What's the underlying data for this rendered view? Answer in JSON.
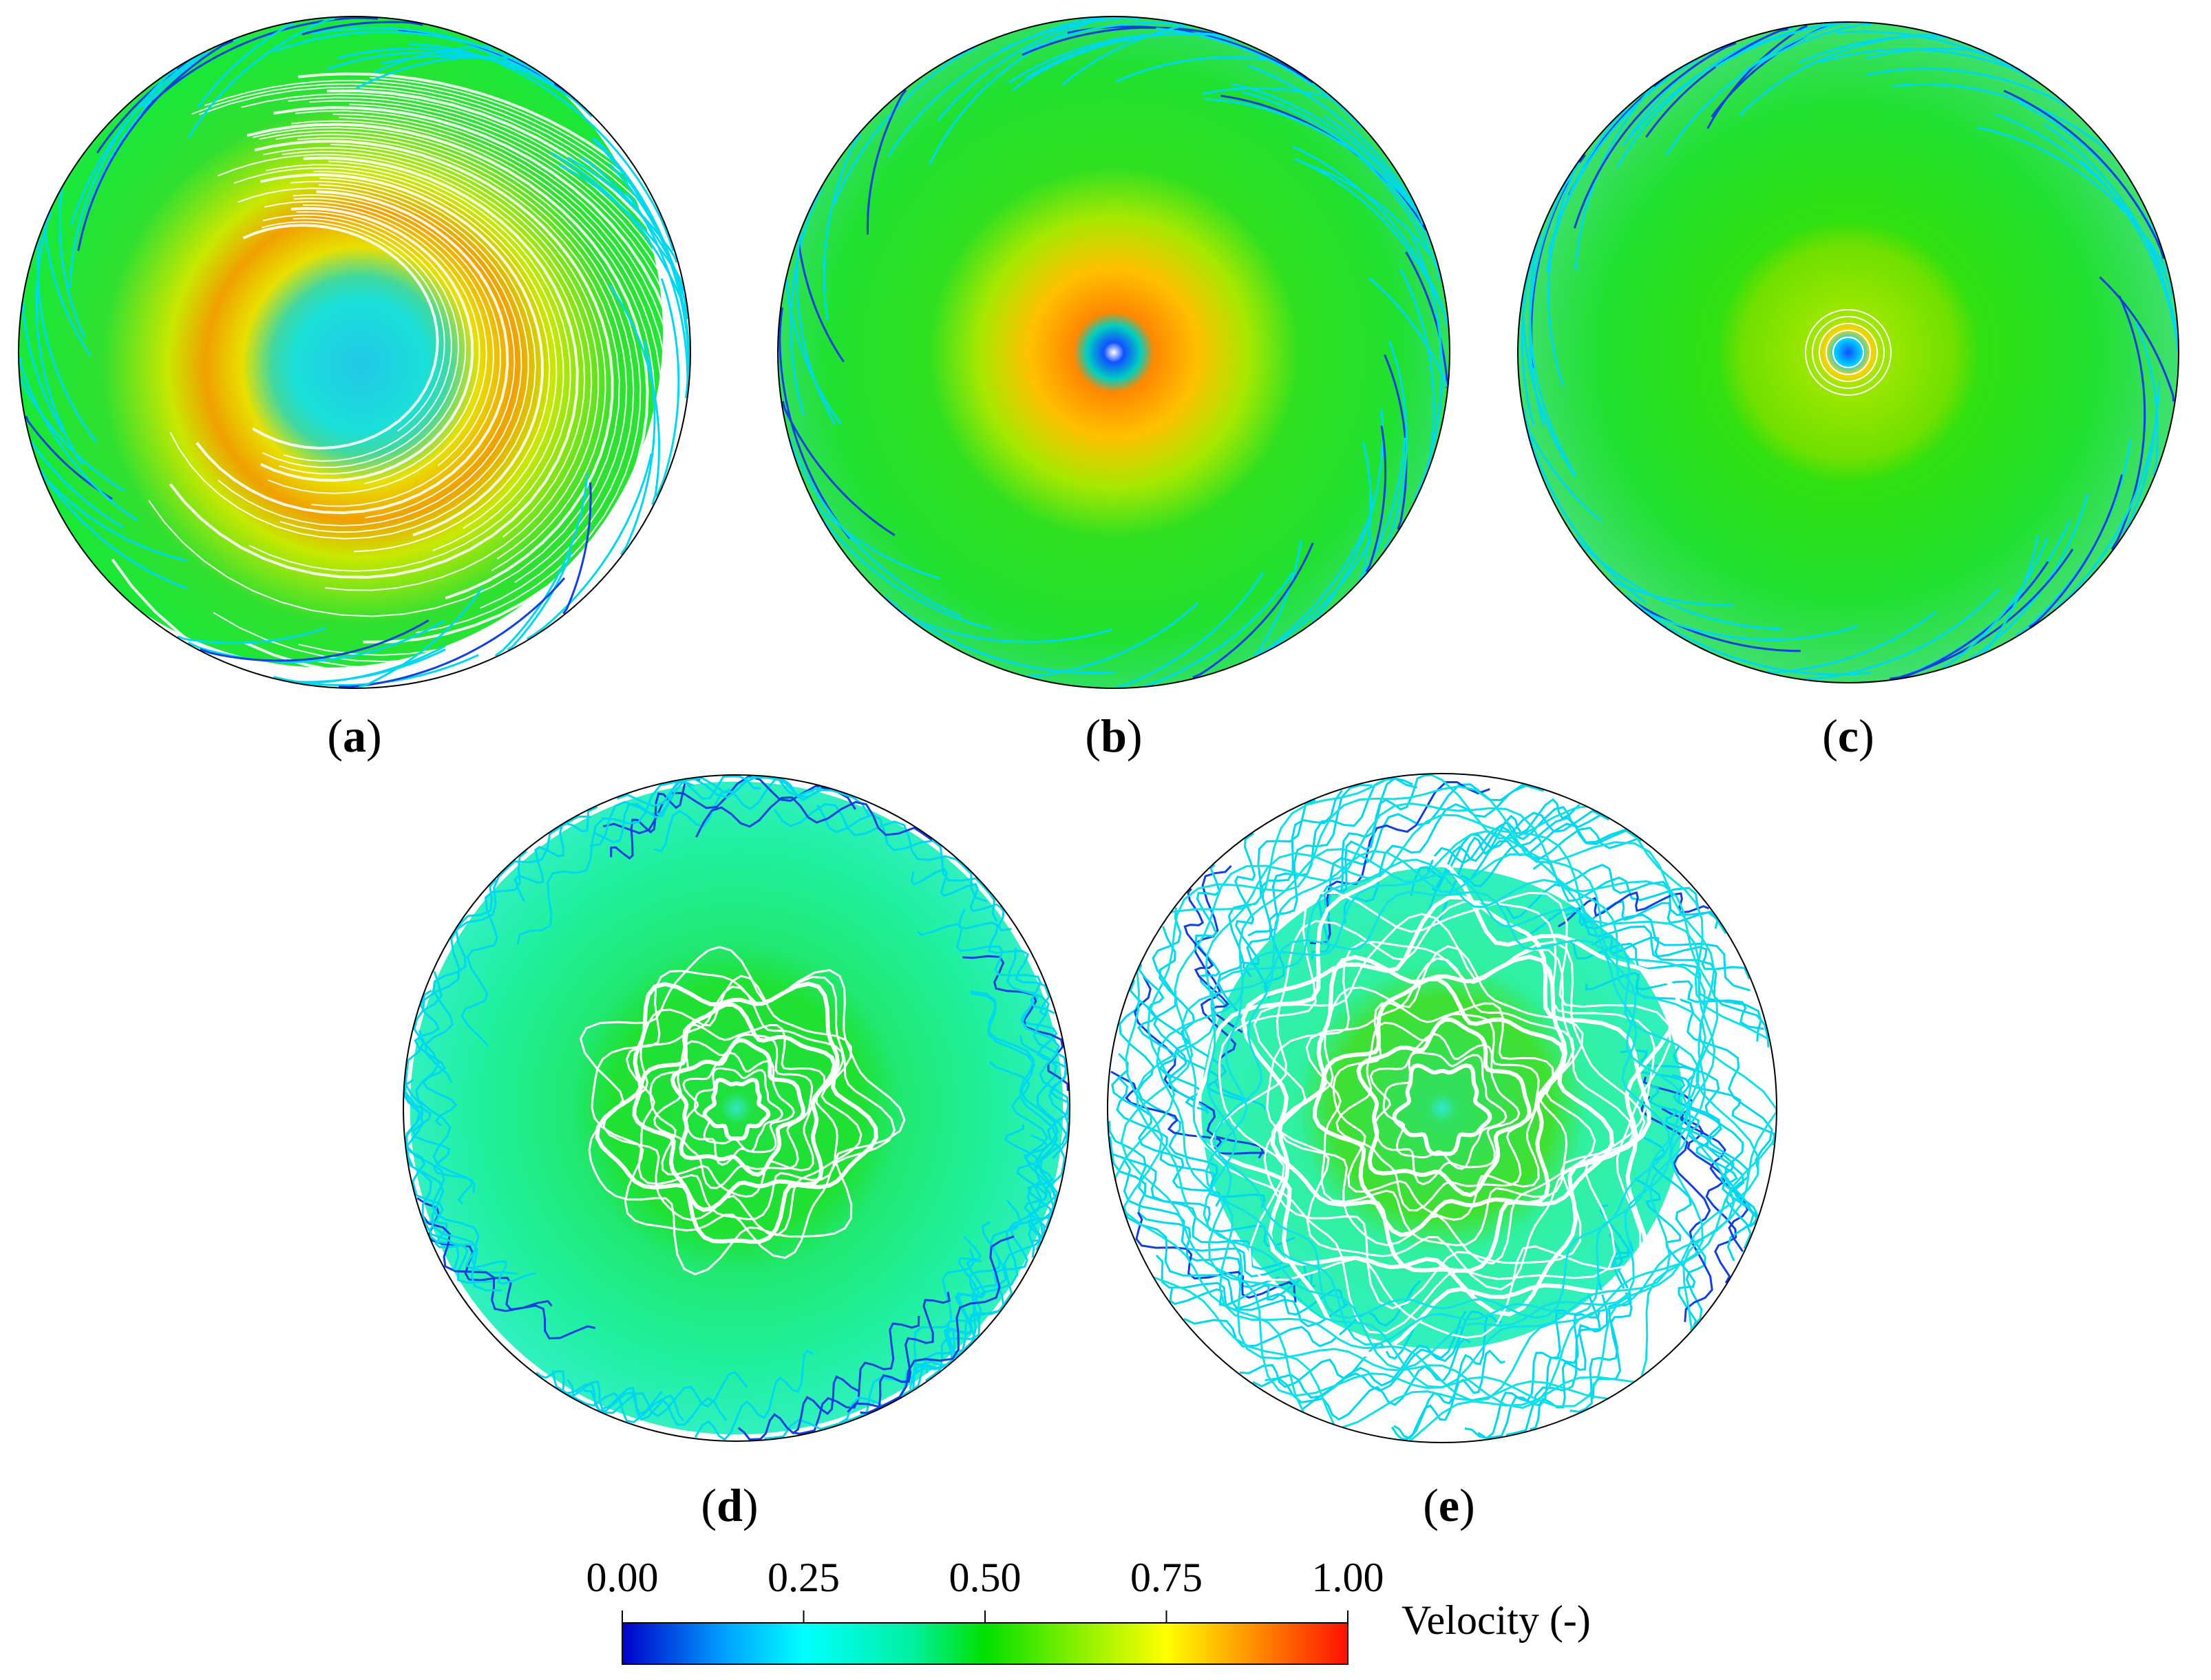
{
  "panels": [
    {
      "id": "a",
      "label": "a",
      "pattern": "offset-vortex"
    },
    {
      "id": "b",
      "label": "b",
      "pattern": "centered-vortex"
    },
    {
      "id": "c",
      "label": "c",
      "pattern": "lobed-vortex"
    },
    {
      "id": "d",
      "label": "d",
      "pattern": "wavy-core"
    },
    {
      "id": "e",
      "label": "e",
      "pattern": "turbulent"
    }
  ],
  "colorbar": {
    "title": "Velocity (-)",
    "ticks": [
      "0.00",
      "0.25",
      "0.50",
      "0.75",
      "1.00"
    ],
    "colors": [
      "#0000c8",
      "#00a0ff",
      "#00ffff",
      "#00f0a0",
      "#00e000",
      "#80f000",
      "#ffff00",
      "#ff9000",
      "#ff1000"
    ]
  }
}
